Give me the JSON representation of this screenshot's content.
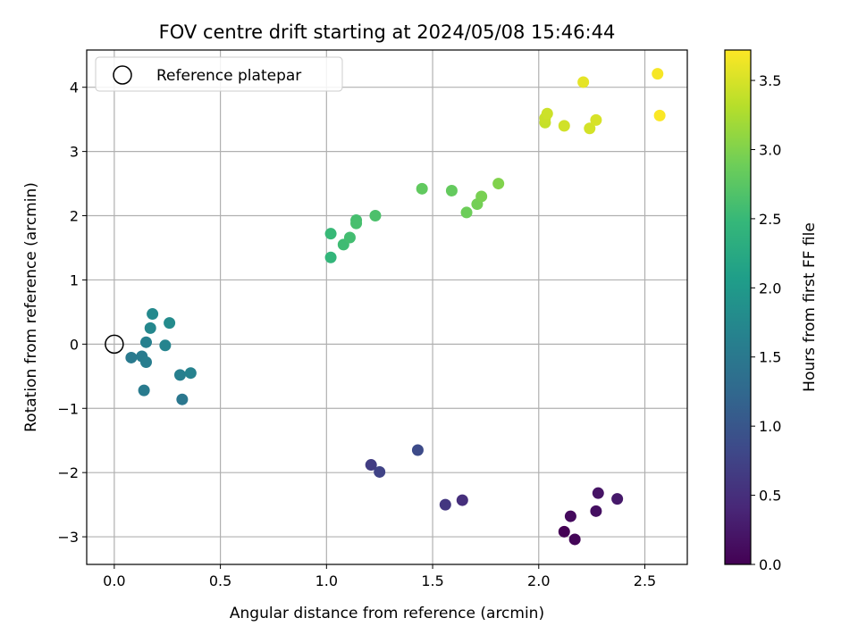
{
  "chart_data": {
    "type": "scatter",
    "title": "FOV centre drift starting at 2024/05/08 15:46:44",
    "xlabel": "Angular distance from reference (arcmin)",
    "ylabel": "Rotation from reference (arcmin)",
    "xlim": [
      -0.13,
      2.7
    ],
    "ylim": [
      -3.43,
      4.58
    ],
    "xticks": [
      0.0,
      0.5,
      1.0,
      1.5,
      2.0,
      2.5
    ],
    "xtick_labels": [
      "0.0",
      "0.5",
      "1.0",
      "1.5",
      "2.0",
      "2.5"
    ],
    "yticks": [
      -3,
      -2,
      -1,
      0,
      1,
      2,
      3,
      4
    ],
    "ytick_labels": [
      "−3",
      "−2",
      "−1",
      "0",
      "1",
      "2",
      "3",
      "4"
    ],
    "grid": true,
    "legend": {
      "position": "top-left",
      "entries": [
        "Reference platepar"
      ]
    },
    "reference_point": {
      "x": 0.0,
      "y": 0.0,
      "marker": "open-circle"
    },
    "colorbar": {
      "label": "Hours from first FF file",
      "range": [
        0.0,
        3.72
      ],
      "ticks": [
        0.0,
        0.5,
        1.0,
        1.5,
        2.0,
        2.5,
        3.0,
        3.5
      ],
      "tick_labels": [
        "0.0",
        "0.5",
        "1.0",
        "1.5",
        "2.0",
        "2.5",
        "3.0",
        "3.5"
      ],
      "colormap": "viridis"
    },
    "colormap_stops": [
      "#440154",
      "#482878",
      "#3e4989",
      "#31688e",
      "#26828e",
      "#1f9e89",
      "#35b779",
      "#6ece58",
      "#b5de2b",
      "#fde725"
    ],
    "points": [
      {
        "x": 2.12,
        "y": -2.92,
        "c": 0.0
      },
      {
        "x": 2.17,
        "y": -3.04,
        "c": 0.05
      },
      {
        "x": 2.15,
        "y": -2.68,
        "c": 0.1
      },
      {
        "x": 2.27,
        "y": -2.6,
        "c": 0.15
      },
      {
        "x": 2.28,
        "y": -2.32,
        "c": 0.2
      },
      {
        "x": 2.37,
        "y": -2.41,
        "c": 0.25
      },
      {
        "x": 1.64,
        "y": -2.43,
        "c": 0.5
      },
      {
        "x": 1.56,
        "y": -2.5,
        "c": 0.6
      },
      {
        "x": 1.21,
        "y": -1.88,
        "c": 0.68
      },
      {
        "x": 1.25,
        "y": -1.99,
        "c": 0.75
      },
      {
        "x": 1.43,
        "y": -1.65,
        "c": 0.85
      },
      {
        "x": 0.14,
        "y": -0.72,
        "c": 1.55
      },
      {
        "x": 0.32,
        "y": -0.86,
        "c": 1.48
      },
      {
        "x": 0.08,
        "y": -0.21,
        "c": 1.52
      },
      {
        "x": 0.13,
        "y": -0.19,
        "c": 1.55
      },
      {
        "x": 0.15,
        "y": -0.28,
        "c": 1.58
      },
      {
        "x": 0.15,
        "y": 0.03,
        "c": 1.62
      },
      {
        "x": 0.31,
        "y": -0.48,
        "c": 1.6
      },
      {
        "x": 0.36,
        "y": -0.45,
        "c": 1.65
      },
      {
        "x": 0.24,
        "y": -0.02,
        "c": 1.68
      },
      {
        "x": 0.17,
        "y": 0.25,
        "c": 1.72
      },
      {
        "x": 0.18,
        "y": 0.47,
        "c": 1.75
      },
      {
        "x": 0.26,
        "y": 0.33,
        "c": 1.78
      },
      {
        "x": 1.02,
        "y": 1.35,
        "c": 2.45
      },
      {
        "x": 1.02,
        "y": 1.72,
        "c": 2.5
      },
      {
        "x": 1.08,
        "y": 1.55,
        "c": 2.55
      },
      {
        "x": 1.11,
        "y": 1.66,
        "c": 2.58
      },
      {
        "x": 1.14,
        "y": 1.93,
        "c": 2.6
      },
      {
        "x": 1.14,
        "y": 1.88,
        "c": 2.62
      },
      {
        "x": 1.23,
        "y": 2.0,
        "c": 2.65
      },
      {
        "x": 1.45,
        "y": 2.42,
        "c": 2.8
      },
      {
        "x": 1.59,
        "y": 2.39,
        "c": 2.82
      },
      {
        "x": 1.66,
        "y": 2.05,
        "c": 2.88
      },
      {
        "x": 1.71,
        "y": 2.18,
        "c": 2.92
      },
      {
        "x": 1.73,
        "y": 2.3,
        "c": 2.95
      },
      {
        "x": 1.81,
        "y": 2.5,
        "c": 3.0
      },
      {
        "x": 2.03,
        "y": 3.45,
        "c": 3.4
      },
      {
        "x": 2.03,
        "y": 3.52,
        "c": 3.42
      },
      {
        "x": 2.04,
        "y": 3.59,
        "c": 3.44
      },
      {
        "x": 2.12,
        "y": 3.4,
        "c": 3.46
      },
      {
        "x": 2.21,
        "y": 4.08,
        "c": 3.58
      },
      {
        "x": 2.24,
        "y": 3.36,
        "c": 3.48
      },
      {
        "x": 2.27,
        "y": 3.49,
        "c": 3.5
      },
      {
        "x": 2.56,
        "y": 4.21,
        "c": 3.68
      },
      {
        "x": 2.57,
        "y": 3.56,
        "c": 3.7
      }
    ]
  }
}
